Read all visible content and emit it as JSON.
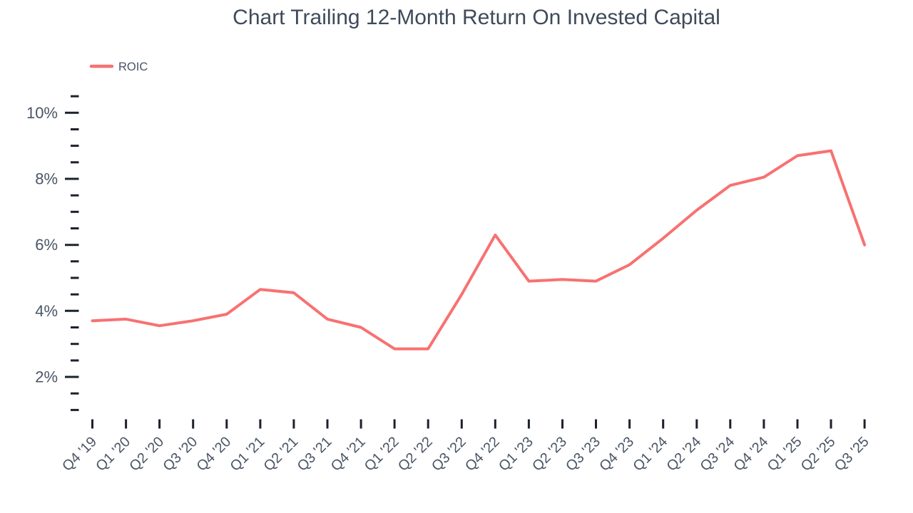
{
  "chart_data": {
    "type": "line",
    "title": "Chart Trailing 12-Month Return On Invested Capital",
    "legend": {
      "position": "top-left",
      "entries": [
        {
          "label": "ROIC",
          "color": "#f87171"
        }
      ]
    },
    "categories": [
      "Q4 '19",
      "Q1 '20",
      "Q2 '20",
      "Q3 '20",
      "Q4 '20",
      "Q1 '21",
      "Q2 '21",
      "Q3 '21",
      "Q4 '21",
      "Q1 '22",
      "Q2 '22",
      "Q3 '22",
      "Q4 '22",
      "Q1 '23",
      "Q2 '23",
      "Q3 '23",
      "Q4 '23",
      "Q1 '24",
      "Q2 '24",
      "Q3 '24",
      "Q4 '24",
      "Q1 '25",
      "Q2 '25",
      "Q3 '25"
    ],
    "series": [
      {
        "name": "ROIC",
        "color": "#f87171",
        "values": [
          3.7,
          3.75,
          3.55,
          3.7,
          3.9,
          4.65,
          4.55,
          3.75,
          3.5,
          2.85,
          2.85,
          4.5,
          6.3,
          4.9,
          4.95,
          4.9,
          5.4,
          6.2,
          7.05,
          7.8,
          8.05,
          8.7,
          8.85,
          6.0
        ]
      }
    ],
    "xlabel": "",
    "ylabel": "",
    "yaxis": {
      "unit": "%",
      "major_ticks": [
        2,
        4,
        6,
        8,
        10
      ],
      "major_tick_labels": [
        "2%",
        "4%",
        "6%",
        "8%",
        "10%"
      ],
      "minor_tick_step": 0.5,
      "minor_tick_min": 1.0,
      "minor_tick_max": 10.5
    },
    "xaxis": {
      "label_rotation_deg": -45
    },
    "grid": false,
    "colors": {
      "line": "#f87171",
      "axis_tick": "#1c222c",
      "axis_label": "#4a5565",
      "title": "#3f4a5a"
    }
  }
}
